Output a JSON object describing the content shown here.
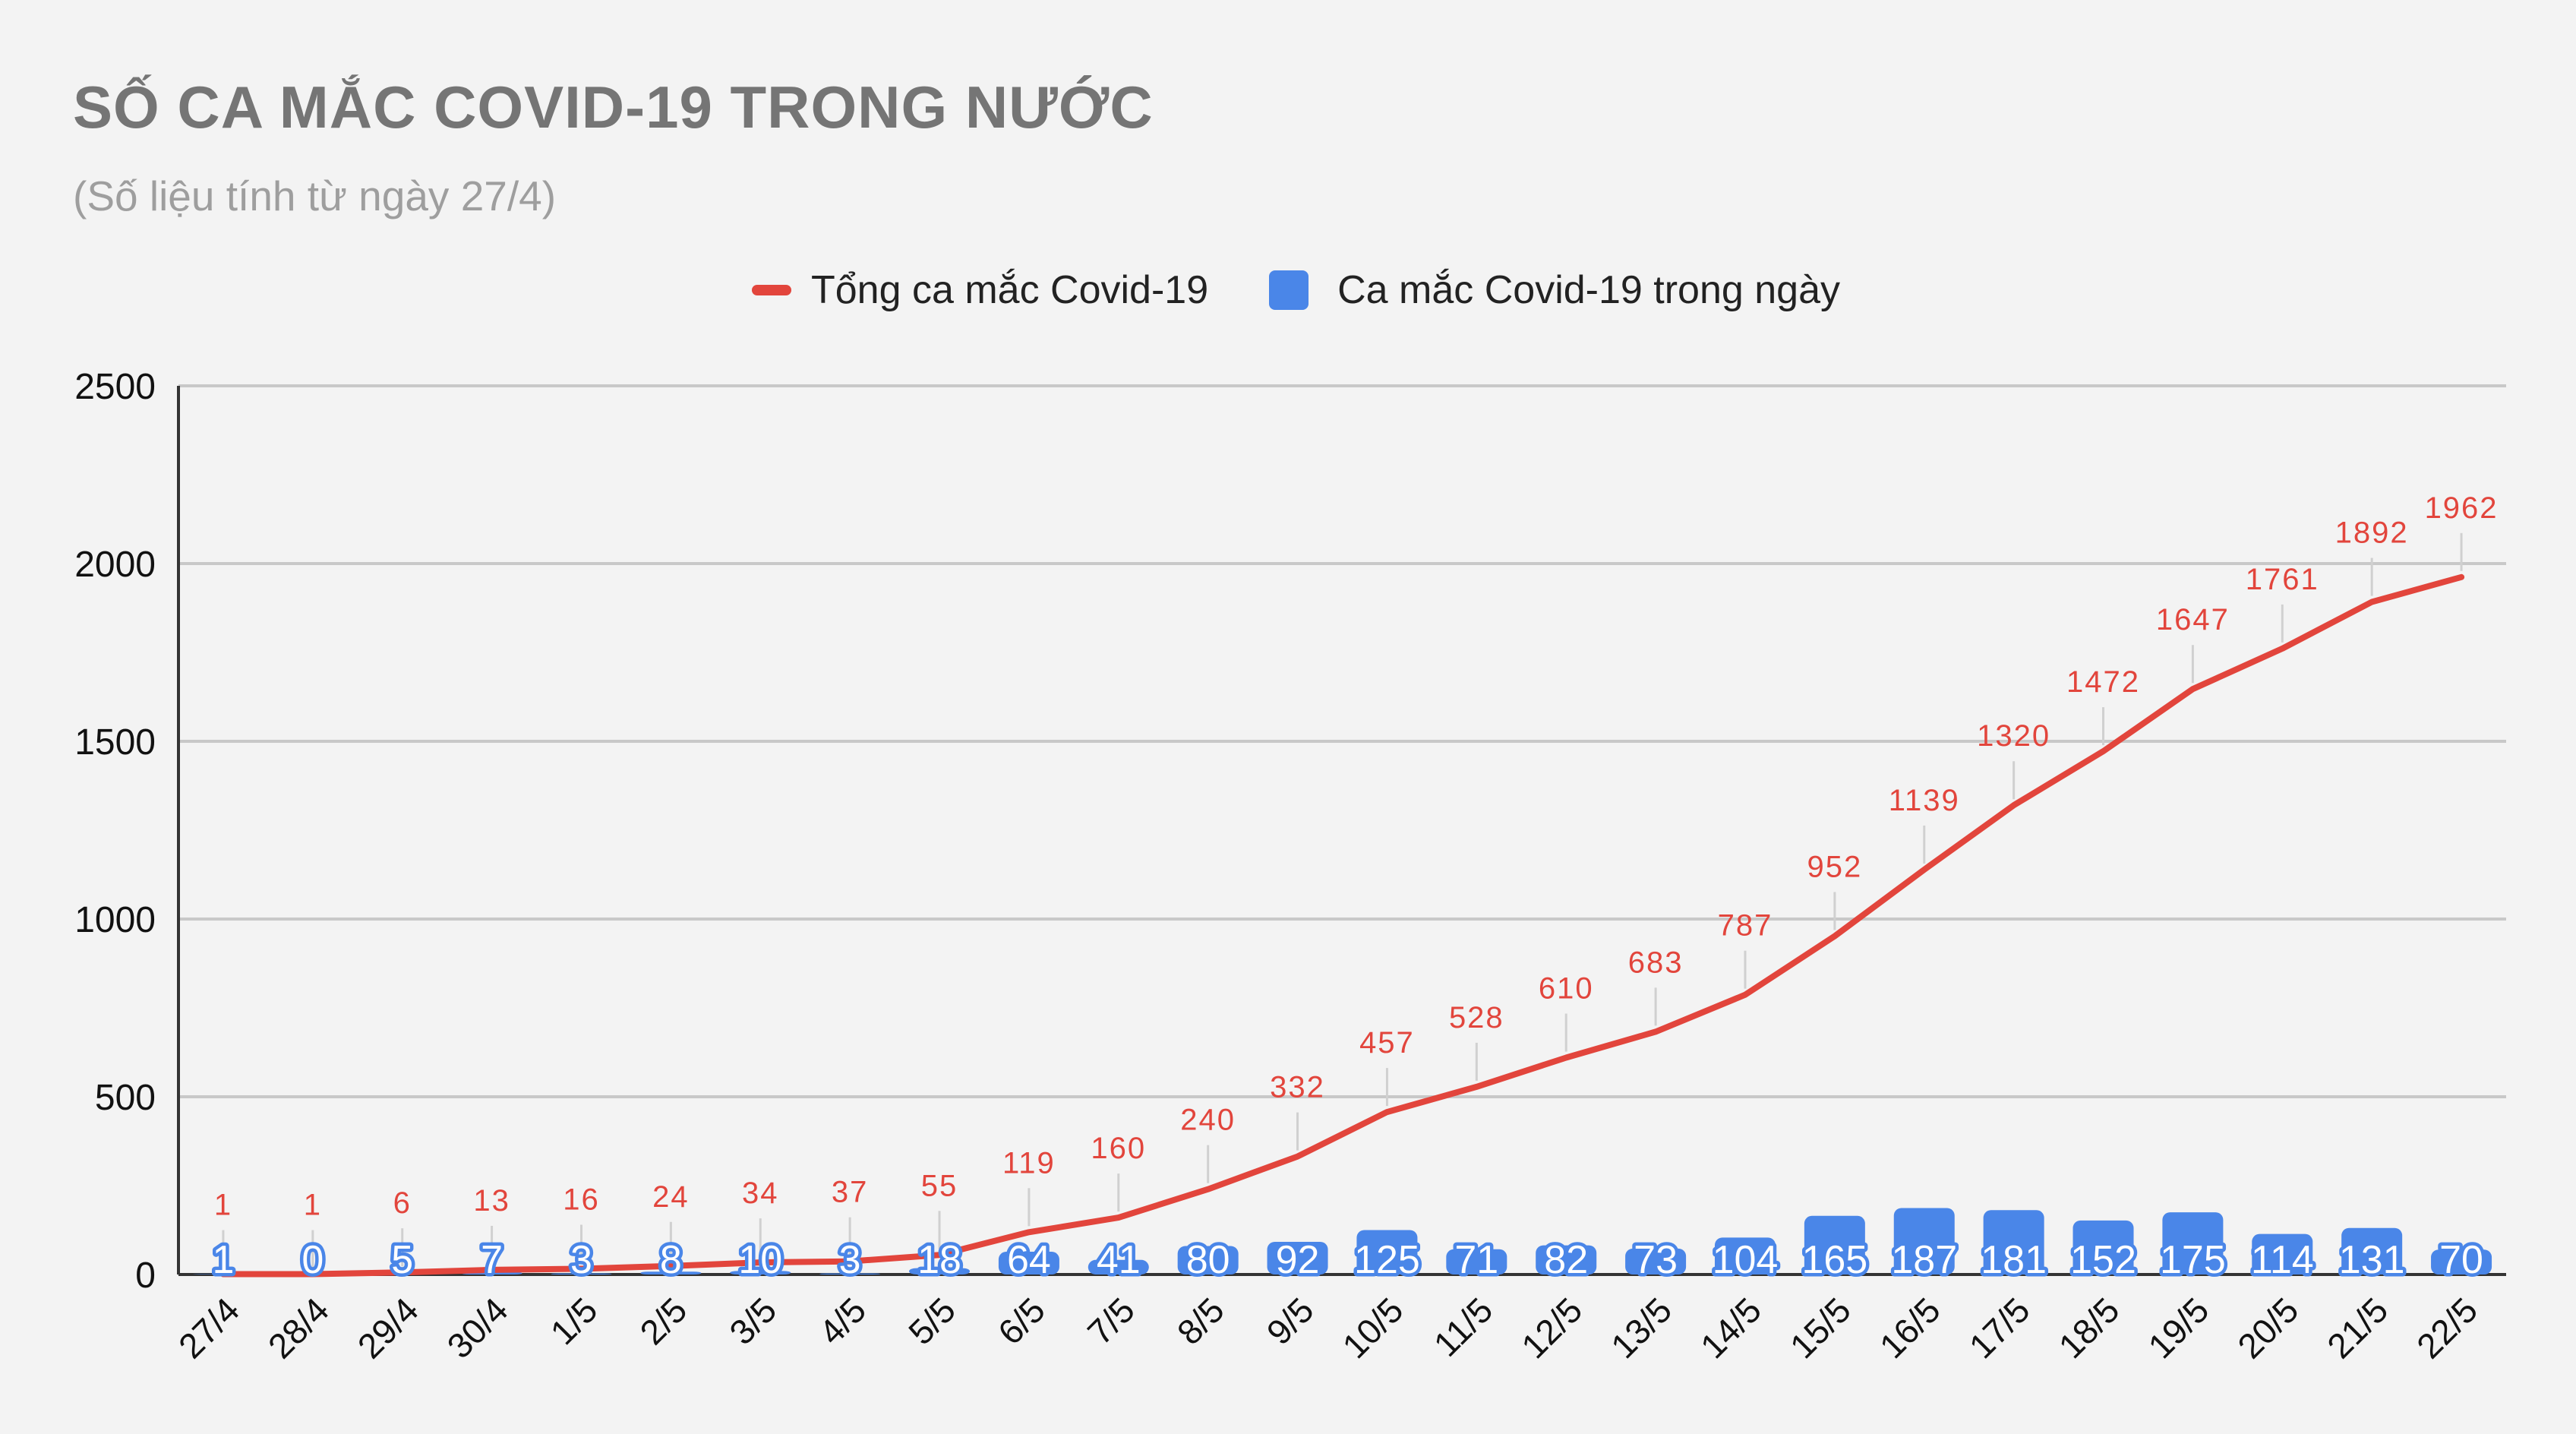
{
  "chart_data": {
    "type": "line",
    "title": "SỐ CA MẮC COVID-19 TRONG NƯỚC",
    "subtitle": "(Số liệu tính từ ngày 27/4)",
    "ylim": [
      0,
      2500
    ],
    "yticks": [
      0,
      500,
      1000,
      1500,
      2000,
      2500
    ],
    "grid": true,
    "legend_position": "top",
    "categories": [
      "27/4",
      "28/4",
      "29/4",
      "30/4",
      "1/5",
      "2/5",
      "3/5",
      "4/5",
      "5/5",
      "6/5",
      "7/5",
      "8/5",
      "9/5",
      "10/5",
      "11/5",
      "12/5",
      "13/5",
      "14/5",
      "15/5",
      "16/5",
      "17/5",
      "18/5",
      "19/5",
      "20/5",
      "21/5",
      "22/5"
    ],
    "series": [
      {
        "name": "Tổng ca mắc Covid-19",
        "type": "line",
        "color": "#e2453c",
        "values": [
          1,
          1,
          6,
          13,
          16,
          24,
          34,
          37,
          55,
          119,
          160,
          240,
          332,
          457,
          528,
          610,
          683,
          787,
          952,
          1139,
          1320,
          1472,
          1647,
          1761,
          1892,
          1962
        ]
      },
      {
        "name": "Ca mắc Covid-19 trong ngày",
        "type": "bar",
        "color": "#4a86e8",
        "values": [
          1,
          0,
          5,
          7,
          3,
          8,
          10,
          3,
          18,
          64,
          41,
          80,
          92,
          125,
          71,
          82,
          73,
          104,
          165,
          187,
          181,
          152,
          175,
          114,
          131,
          70
        ]
      }
    ]
  },
  "colors": {
    "background": "#f3f3f3",
    "grid": "#c8c8c8",
    "axis": "#333333",
    "title": "#757575",
    "subtitle": "#9e9e9e",
    "line": "#e2453c",
    "bar": "#4a86e8"
  }
}
